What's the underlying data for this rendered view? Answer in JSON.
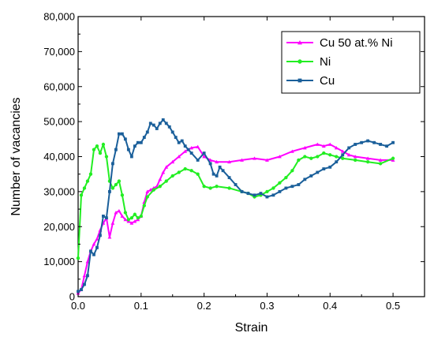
{
  "chart_data": {
    "type": "line",
    "xlabel": "Strain",
    "ylabel": "Number of vacancies",
    "xlim": [
      0,
      0.55
    ],
    "ylim": [
      0,
      80000
    ],
    "x_ticks": [
      0.0,
      0.1,
      0.2,
      0.3,
      0.4,
      0.5
    ],
    "x_tick_labels": [
      "0.0",
      "0.1",
      "0.2",
      "0.3",
      "0.4",
      "0.5"
    ],
    "y_ticks": [
      0,
      10000,
      20000,
      30000,
      40000,
      50000,
      60000,
      70000,
      80000
    ],
    "y_tick_labels": [
      "0",
      "10,000",
      "20,000",
      "30,000",
      "40,000",
      "50,000",
      "60,000",
      "70,000",
      "80,000"
    ],
    "grid": false,
    "legend": "top-right",
    "series": [
      {
        "name": "Cu 50 at.% Ni",
        "color": "#ff00ff",
        "marker": "triangle",
        "points": [
          [
            0,
            1000
          ],
          [
            0.005,
            2000
          ],
          [
            0.01,
            6000
          ],
          [
            0.015,
            10000
          ],
          [
            0.02,
            13000
          ],
          [
            0.025,
            15000
          ],
          [
            0.03,
            16500
          ],
          [
            0.035,
            19000
          ],
          [
            0.04,
            21000
          ],
          [
            0.045,
            22500
          ],
          [
            0.05,
            17000
          ],
          [
            0.055,
            21000
          ],
          [
            0.06,
            24000
          ],
          [
            0.065,
            24500
          ],
          [
            0.07,
            23000
          ],
          [
            0.075,
            22000
          ],
          [
            0.08,
            21500
          ],
          [
            0.085,
            21000
          ],
          [
            0.09,
            21500
          ],
          [
            0.095,
            22000
          ],
          [
            0.1,
            23000
          ],
          [
            0.105,
            27000
          ],
          [
            0.11,
            30000
          ],
          [
            0.115,
            30500
          ],
          [
            0.12,
            31000
          ],
          [
            0.125,
            31500
          ],
          [
            0.13,
            33500
          ],
          [
            0.135,
            35500
          ],
          [
            0.14,
            37000
          ],
          [
            0.15,
            38500
          ],
          [
            0.16,
            40000
          ],
          [
            0.17,
            41500
          ],
          [
            0.18,
            42500
          ],
          [
            0.19,
            42800
          ],
          [
            0.2,
            40000
          ],
          [
            0.21,
            39000
          ],
          [
            0.22,
            38500
          ],
          [
            0.24,
            38500
          ],
          [
            0.26,
            39000
          ],
          [
            0.28,
            39500
          ],
          [
            0.3,
            39000
          ],
          [
            0.32,
            40000
          ],
          [
            0.34,
            41500
          ],
          [
            0.36,
            42500
          ],
          [
            0.38,
            43500
          ],
          [
            0.39,
            43000
          ],
          [
            0.4,
            43500
          ],
          [
            0.41,
            42500
          ],
          [
            0.42,
            41500
          ],
          [
            0.43,
            40500
          ],
          [
            0.44,
            40000
          ],
          [
            0.46,
            39500
          ],
          [
            0.48,
            39000
          ],
          [
            0.5,
            39000
          ]
        ]
      },
      {
        "name": "Ni",
        "color": "#22ee22",
        "marker": "circle",
        "points": [
          [
            0,
            11000
          ],
          [
            0.005,
            29000
          ],
          [
            0.01,
            31000
          ],
          [
            0.015,
            33000
          ],
          [
            0.02,
            35000
          ],
          [
            0.025,
            42000
          ],
          [
            0.03,
            43000
          ],
          [
            0.035,
            41000
          ],
          [
            0.04,
            43500
          ],
          [
            0.045,
            40000
          ],
          [
            0.05,
            33000
          ],
          [
            0.055,
            31000
          ],
          [
            0.06,
            32000
          ],
          [
            0.065,
            33000
          ],
          [
            0.07,
            29000
          ],
          [
            0.075,
            24000
          ],
          [
            0.08,
            22000
          ],
          [
            0.085,
            22500
          ],
          [
            0.09,
            23500
          ],
          [
            0.095,
            22500
          ],
          [
            0.1,
            23000
          ],
          [
            0.105,
            26000
          ],
          [
            0.11,
            28500
          ],
          [
            0.12,
            30500
          ],
          [
            0.13,
            31500
          ],
          [
            0.14,
            33000
          ],
          [
            0.15,
            34500
          ],
          [
            0.16,
            35500
          ],
          [
            0.17,
            36500
          ],
          [
            0.18,
            36000
          ],
          [
            0.19,
            35000
          ],
          [
            0.2,
            31500
          ],
          [
            0.21,
            31000
          ],
          [
            0.22,
            31500
          ],
          [
            0.24,
            31000
          ],
          [
            0.26,
            30000
          ],
          [
            0.27,
            29500
          ],
          [
            0.28,
            28500
          ],
          [
            0.29,
            29000
          ],
          [
            0.3,
            30000
          ],
          [
            0.31,
            31000
          ],
          [
            0.32,
            32500
          ],
          [
            0.33,
            34000
          ],
          [
            0.34,
            36000
          ],
          [
            0.35,
            39000
          ],
          [
            0.36,
            40000
          ],
          [
            0.37,
            39500
          ],
          [
            0.38,
            40000
          ],
          [
            0.39,
            41000
          ],
          [
            0.4,
            40500
          ],
          [
            0.41,
            40000
          ],
          [
            0.42,
            39500
          ],
          [
            0.44,
            39000
          ],
          [
            0.46,
            38500
          ],
          [
            0.48,
            38000
          ],
          [
            0.5,
            39500
          ]
        ]
      },
      {
        "name": "Cu",
        "color": "#1a5f9a",
        "marker": "square",
        "points": [
          [
            0,
            1500
          ],
          [
            0.005,
            2000
          ],
          [
            0.01,
            3500
          ],
          [
            0.015,
            6000
          ],
          [
            0.02,
            13000
          ],
          [
            0.025,
            12000
          ],
          [
            0.03,
            14000
          ],
          [
            0.035,
            17500
          ],
          [
            0.04,
            23000
          ],
          [
            0.045,
            22500
          ],
          [
            0.05,
            30000
          ],
          [
            0.055,
            38000
          ],
          [
            0.06,
            42000
          ],
          [
            0.065,
            46500
          ],
          [
            0.07,
            46500
          ],
          [
            0.075,
            45000
          ],
          [
            0.08,
            42000
          ],
          [
            0.085,
            40000
          ],
          [
            0.09,
            43000
          ],
          [
            0.095,
            44000
          ],
          [
            0.1,
            44000
          ],
          [
            0.105,
            45500
          ],
          [
            0.11,
            47000
          ],
          [
            0.115,
            49500
          ],
          [
            0.12,
            49000
          ],
          [
            0.125,
            48000
          ],
          [
            0.13,
            49500
          ],
          [
            0.135,
            50500
          ],
          [
            0.14,
            49500
          ],
          [
            0.145,
            48500
          ],
          [
            0.15,
            47000
          ],
          [
            0.155,
            45500
          ],
          [
            0.16,
            44000
          ],
          [
            0.165,
            44500
          ],
          [
            0.17,
            43000
          ],
          [
            0.175,
            42000
          ],
          [
            0.18,
            41000
          ],
          [
            0.19,
            39000
          ],
          [
            0.2,
            41000
          ],
          [
            0.21,
            38000
          ],
          [
            0.215,
            35000
          ],
          [
            0.22,
            34500
          ],
          [
            0.225,
            37000
          ],
          [
            0.23,
            36000
          ],
          [
            0.24,
            34000
          ],
          [
            0.25,
            32000
          ],
          [
            0.26,
            30000
          ],
          [
            0.27,
            29500
          ],
          [
            0.28,
            29000
          ],
          [
            0.29,
            29500
          ],
          [
            0.3,
            28500
          ],
          [
            0.31,
            29000
          ],
          [
            0.32,
            30000
          ],
          [
            0.33,
            31000
          ],
          [
            0.34,
            31500
          ],
          [
            0.35,
            32000
          ],
          [
            0.36,
            33500
          ],
          [
            0.37,
            34500
          ],
          [
            0.38,
            35500
          ],
          [
            0.39,
            36500
          ],
          [
            0.4,
            37000
          ],
          [
            0.41,
            38500
          ],
          [
            0.42,
            40500
          ],
          [
            0.43,
            42500
          ],
          [
            0.44,
            43500
          ],
          [
            0.45,
            44000
          ],
          [
            0.46,
            44500
          ],
          [
            0.47,
            44000
          ],
          [
            0.48,
            43500
          ],
          [
            0.49,
            43000
          ],
          [
            0.5,
            44000
          ]
        ]
      }
    ]
  }
}
